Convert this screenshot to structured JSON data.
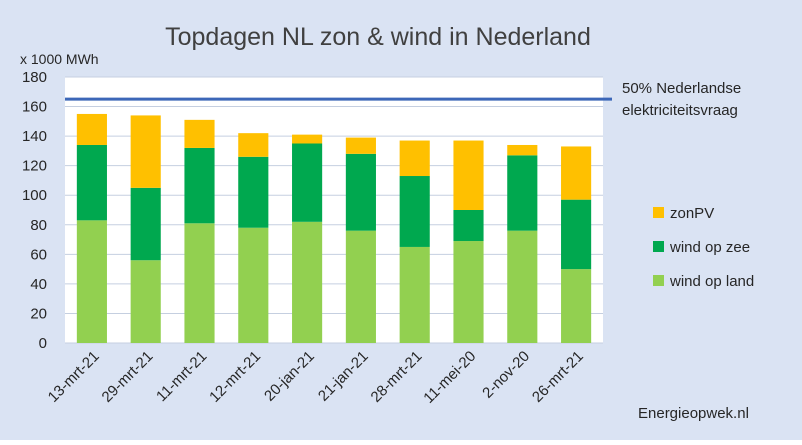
{
  "chart_data": {
    "type": "bar",
    "stacked": true,
    "title": "Topdagen NL zon & wind in Nederland",
    "ylabel": "x 1000 MWh",
    "xlabel": "",
    "ylim": [
      0,
      180
    ],
    "yticks": [
      0,
      20,
      40,
      60,
      80,
      100,
      120,
      140,
      160,
      180
    ],
    "grid": true,
    "legend_position": "right",
    "categories": [
      "13-mrt-21",
      "29-mrt-21",
      "11-mrt-21",
      "12-mrt-21",
      "20-jan-21",
      "21-jan-21",
      "28-mrt-21",
      "11-mei-20",
      "2-nov-20",
      "26-mrt-21"
    ],
    "series": [
      {
        "name": "wind op land",
        "color": "#92d050",
        "values": [
          83,
          56,
          81,
          78,
          82,
          76,
          65,
          69,
          76,
          50
        ]
      },
      {
        "name": "wind op zee",
        "color": "#00a84f",
        "values": [
          51,
          49,
          51,
          48,
          53,
          52,
          48,
          21,
          51,
          47
        ]
      },
      {
        "name": "zonPV",
        "color": "#ffc000",
        "values": [
          21,
          49,
          19,
          16,
          6,
          11,
          24,
          47,
          7,
          36
        ]
      }
    ],
    "reference_line": {
      "value": 165,
      "color": "#3c67b8",
      "label_lines": [
        "50% Nederlandse",
        "elektriciteitsvraag"
      ]
    },
    "source": "Energieopwek.nl"
  },
  "colors": {
    "plot_background": "#dae3f3",
    "outer_background": "#ffffff",
    "grid": "#c5cfe0"
  }
}
